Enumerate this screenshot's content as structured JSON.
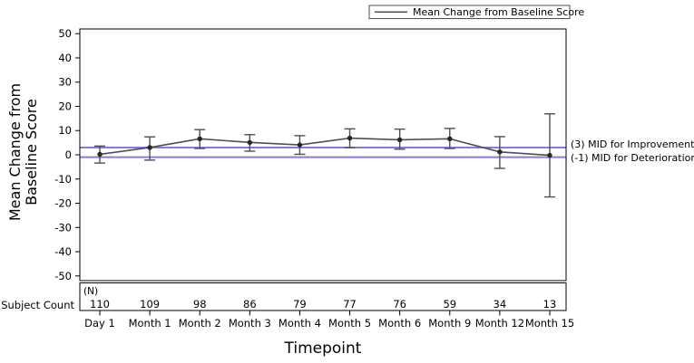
{
  "chart_data": {
    "type": "line",
    "legend": {
      "label": "Mean Change from Baseline Score",
      "position": "top-right"
    },
    "xlabel": "Timepoint",
    "ylabel_lines": [
      "Mean Change from",
      "Baseline Score"
    ],
    "ylim": [
      -52,
      52
    ],
    "yticks": [
      50,
      40,
      30,
      20,
      10,
      0,
      -10,
      -20,
      -30,
      -40,
      -50
    ],
    "categories": [
      "Day 1",
      "Month 1",
      "Month 2",
      "Month 3",
      "Month 4",
      "Month 5",
      "Month 6",
      "Month 9",
      "Month 12",
      "Month 15"
    ],
    "series": [
      {
        "name": "Mean Change from Baseline Score",
        "values": [
          0.2,
          3.0,
          6.6,
          5.1,
          4.1,
          6.9,
          6.2,
          6.6,
          1.2,
          -0.2
        ],
        "upper": [
          3.6,
          7.4,
          10.4,
          8.3,
          7.9,
          10.7,
          10.6,
          10.9,
          7.5,
          16.9
        ],
        "lower": [
          -3.4,
          -2.2,
          2.6,
          1.5,
          0.2,
          3.0,
          2.3,
          2.6,
          -5.6,
          -17.4
        ],
        "line_color": "#4f4f4f",
        "marker_color": "#262626"
      }
    ],
    "reference_lines": [
      {
        "value": 3,
        "label": "(3) MID for Improvement",
        "color": "#8877e8"
      },
      {
        "value": -1,
        "label": "(-1) MID for Deterioration",
        "color": "#8877e8"
      }
    ],
    "subject_counts": {
      "row_label": "Subject Count",
      "unit_label": "(N)",
      "values": [
        110,
        109,
        98,
        86,
        79,
        77,
        76,
        59,
        34,
        13
      ]
    },
    "grid": false,
    "colors": {
      "frame": "#000000",
      "text": "#000000",
      "background": "#ffffff"
    }
  }
}
